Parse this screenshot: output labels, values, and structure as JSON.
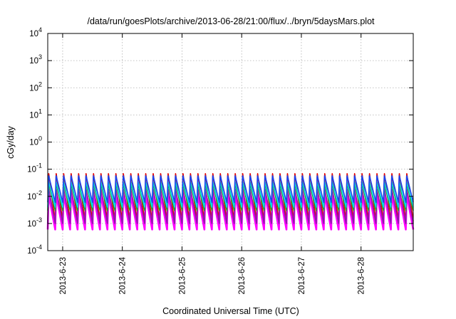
{
  "chart_data": {
    "type": "line",
    "title": "/data/run/goesPlots/archive/2013-06-28/21:00/flux/../bryn/5daysMars.plot",
    "xlabel": "Coordinated Universal Time (UTC)",
    "ylabel": "cGy/day",
    "y_scale": "log",
    "ylim": [
      0.0001,
      10000
    ],
    "xlim": [
      "2013-06-22T18:00",
      "2013-06-28T21:00"
    ],
    "x_ticks": [
      "2013-6-23",
      "2013-6-24",
      "2013-6-25",
      "2013-6-26",
      "2013-6-27",
      "2013-6-28"
    ],
    "y_ticks": [
      {
        "base": "10",
        "exp": "-4"
      },
      {
        "base": "10",
        "exp": "-3"
      },
      {
        "base": "10",
        "exp": "-2"
      },
      {
        "base": "10",
        "exp": "-1"
      },
      {
        "base": "10",
        "exp": "0"
      },
      {
        "base": "10",
        "exp": "1"
      },
      {
        "base": "10",
        "exp": "2"
      },
      {
        "base": "10",
        "exp": "3"
      },
      {
        "base": "10",
        "exp": "4"
      }
    ],
    "grid": true,
    "legend": "none",
    "periodic_pattern": {
      "period_hours": 3,
      "description": "sawtooth; rises quickly to peak then decays to trough"
    },
    "series": [
      {
        "color": "#e00000",
        "peak": 0.075,
        "trough": 0.0012
      },
      {
        "color": "#ff00ff",
        "peak": 0.012,
        "trough": 0.0006
      },
      {
        "color": "#8a1aa8",
        "peak": 0.02,
        "trough": 0.001
      },
      {
        "color": "#22aa22",
        "peak": 0.03,
        "trough": 0.003
      },
      {
        "color": "#00d8e8",
        "peak": 0.035,
        "trough": 0.004
      },
      {
        "color": "#1844ee",
        "peak": 0.06,
        "trough": 0.006
      }
    ]
  }
}
